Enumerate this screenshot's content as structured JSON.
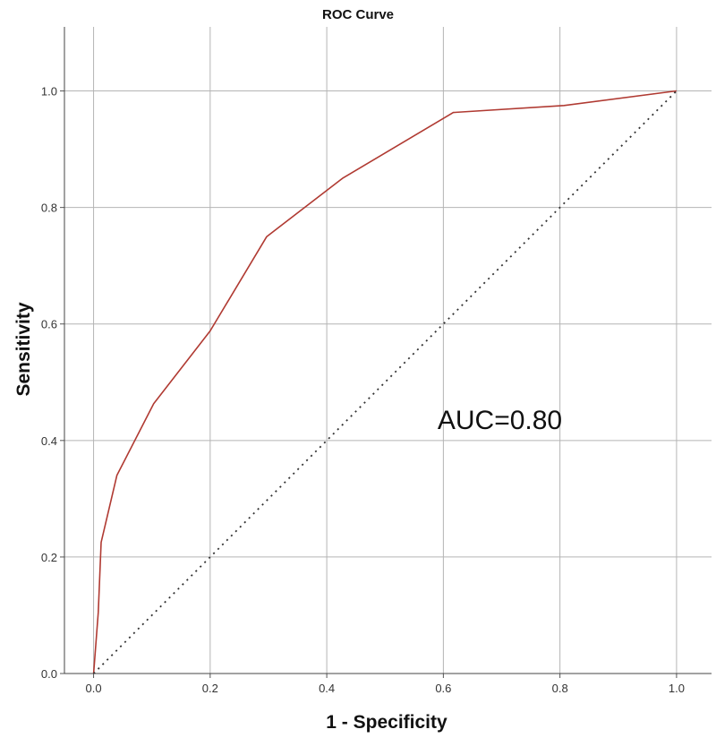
{
  "chart_data": {
    "type": "line",
    "title": "ROC Curve",
    "xlabel": "1 - Specificity",
    "ylabel": "Sensitivity",
    "xlim": [
      -0.05,
      1.06
    ],
    "ylim": [
      0.0,
      1.11
    ],
    "x_ticks": [
      "0.0",
      "0.2",
      "0.4",
      "0.6",
      "0.8",
      "1.0"
    ],
    "y_ticks": [
      "0.0",
      "0.2",
      "0.4",
      "0.6",
      "0.8",
      "1.0"
    ],
    "grid": true,
    "legend": "none",
    "series": [
      {
        "color": "#b03a32",
        "style": "solid",
        "x": [
          0.0,
          0.008,
          0.013,
          0.04,
          0.103,
          0.2,
          0.297,
          0.427,
          0.617,
          0.807,
          1.0
        ],
        "y": [
          0.0,
          0.105,
          0.225,
          0.34,
          0.463,
          0.588,
          0.75,
          0.85,
          0.963,
          0.975,
          1.0
        ]
      },
      {
        "color": "#333333",
        "style": "dotted",
        "x": [
          0.0,
          1.0
        ],
        "y": [
          0.0,
          1.0
        ]
      }
    ],
    "annotations": [
      {
        "text": "AUC=0.80",
        "x": 0.59,
        "y": 0.42
      }
    ]
  }
}
